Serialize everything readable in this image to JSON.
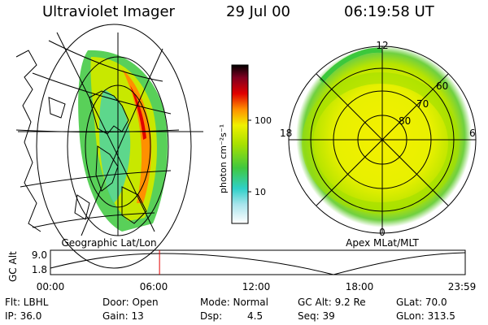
{
  "header": {
    "title": "Ultraviolet Imager",
    "date": "29 Jul 00",
    "time": "06:19:58 UT"
  },
  "colorbar": {
    "unit_label": "photon cm⁻²s⁻¹",
    "tick_labels": [
      "100",
      "10"
    ]
  },
  "geo_panel": {
    "caption": "Geographic Lat/Lon"
  },
  "polar_panel": {
    "caption": "Apex MLat/MLT",
    "mlt_labels": {
      "top": "12",
      "left": "18",
      "right": "6",
      "bottom": "0"
    },
    "lat_labels": [
      "60",
      "70",
      "80"
    ]
  },
  "altitude_track": {
    "ylabel": "GC Alt",
    "y_ticks": [
      "9.0",
      "1.8"
    ],
    "x_ticks": [
      "00:00",
      "06:00",
      "12:00",
      "18:00",
      "23:59"
    ],
    "current_time_fraction": 0.263
  },
  "info": {
    "row1": {
      "filter": "Flt: LBHL",
      "door": "Door: Open",
      "mode": "Mode: Normal",
      "gc_alt": "GC Alt: 9.2 Re",
      "glat": "GLat: 70.0"
    },
    "row2": {
      "ip": "IP: 36.0",
      "gain": "Gain: 13",
      "dsp_label": "Dsp:",
      "dsp_value": "4.5",
      "seq": "Seq: 39",
      "glon": "GLon: 313.5"
    }
  },
  "colors": {
    "track_marker": "#e00000",
    "colorscale": [
      "#ffffff",
      "#7fd8e6",
      "#2fd0c8",
      "#3cc83c",
      "#a0e000",
      "#f0f000",
      "#ff9000",
      "#e00000",
      "#800020",
      "#000000"
    ]
  }
}
